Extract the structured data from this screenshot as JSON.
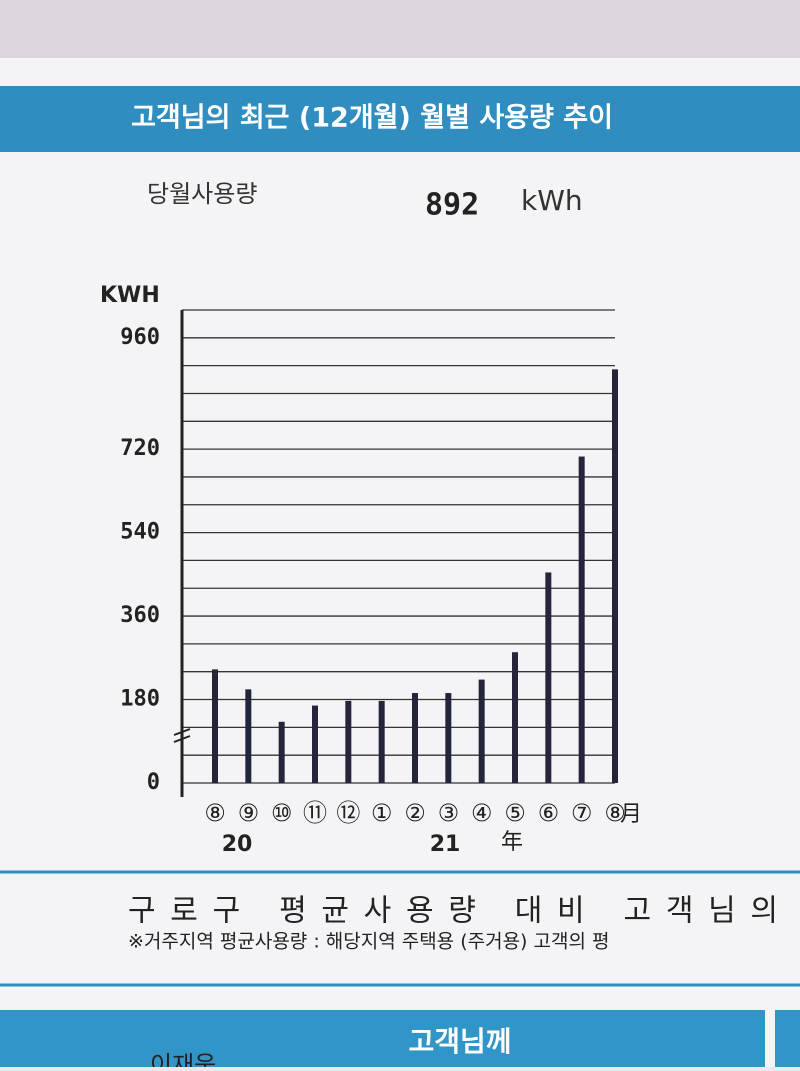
{
  "header": {
    "title": "고객님의 최근 (12개월) 월별 사용량 추이"
  },
  "current_usage": {
    "label": "당월사용량",
    "value": 892,
    "unit": "kWh"
  },
  "chart_data": {
    "type": "bar",
    "ylabel": "KWH",
    "categories": [
      "⑧",
      "⑨",
      "⑩",
      "⑪",
      "⑫",
      "①",
      "②",
      "③",
      "④",
      "⑤",
      "⑥",
      "⑦",
      "⑧"
    ],
    "x_unit": "月",
    "x_years": [
      "20",
      "21"
    ],
    "x_year_unit": "年",
    "values": [
      245,
      202,
      132,
      167,
      177,
      177,
      194,
      194,
      223,
      282,
      454,
      704,
      892
    ],
    "color": "#24243a",
    "ylim": [
      0,
      1020
    ],
    "yticks": [
      0,
      180,
      360,
      540,
      720,
      960
    ],
    "minor_yticks": [
      60,
      120,
      240,
      300,
      420,
      480,
      600,
      660,
      780,
      840,
      900,
      1020
    ],
    "grid": true
  },
  "comparison": {
    "title": "구로구 평균사용량 대비 고객님의",
    "note": "※거주지역 평균사용량 : 해당지역 주택용 (주거용) 고객의 평"
  },
  "footer": {
    "title": "고객님께",
    "name": "이재웅"
  }
}
